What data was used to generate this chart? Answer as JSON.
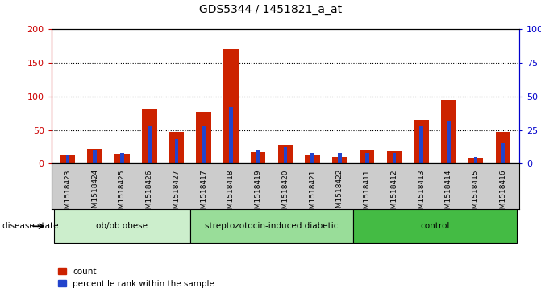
{
  "title": "GDS5344 / 1451821_a_at",
  "samples": [
    "GSM1518423",
    "GSM1518424",
    "GSM1518425",
    "GSM1518426",
    "GSM1518427",
    "GSM1518417",
    "GSM1518418",
    "GSM1518419",
    "GSM1518420",
    "GSM1518421",
    "GSM1518422",
    "GSM1518411",
    "GSM1518412",
    "GSM1518413",
    "GSM1518414",
    "GSM1518415",
    "GSM1518416"
  ],
  "red_values": [
    12,
    22,
    15,
    82,
    47,
    77,
    170,
    17,
    28,
    12,
    10,
    20,
    18,
    65,
    95,
    8,
    47
  ],
  "blue_values_pct": [
    6,
    10,
    8,
    28,
    18,
    28,
    42,
    10,
    12,
    8,
    8,
    8,
    8,
    28,
    32,
    5,
    15
  ],
  "groups": [
    {
      "label": "ob/ob obese",
      "start": 0,
      "end": 5,
      "color": "#cceecc"
    },
    {
      "label": "streptozotocin-induced diabetic",
      "start": 5,
      "end": 11,
      "color": "#99dd99"
    },
    {
      "label": "control",
      "start": 11,
      "end": 17,
      "color": "#44bb44"
    }
  ],
  "ylim_left": [
    0,
    200
  ],
  "ylim_right": [
    0,
    100
  ],
  "yticks_left": [
    0,
    50,
    100,
    150,
    200
  ],
  "yticks_right": [
    0,
    25,
    50,
    75,
    100
  ],
  "ytick_labels_left": [
    "0",
    "50",
    "100",
    "150",
    "200"
  ],
  "ytick_labels_right": [
    "0",
    "25",
    "50",
    "75",
    "100%"
  ],
  "red_color": "#cc2200",
  "blue_color": "#2244cc",
  "background_color": "#ffffff",
  "plot_bg_color": "#ffffff",
  "xticklabel_bg": "#cccccc",
  "legend_count_label": "count",
  "legend_pct_label": "percentile rank within the sample",
  "disease_state_label": "disease state",
  "left_axis_color": "#cc0000",
  "right_axis_color": "#0000cc",
  "grid_color": "#000000",
  "title_fontsize": 10,
  "tick_fontsize": 8,
  "label_fontsize": 8
}
